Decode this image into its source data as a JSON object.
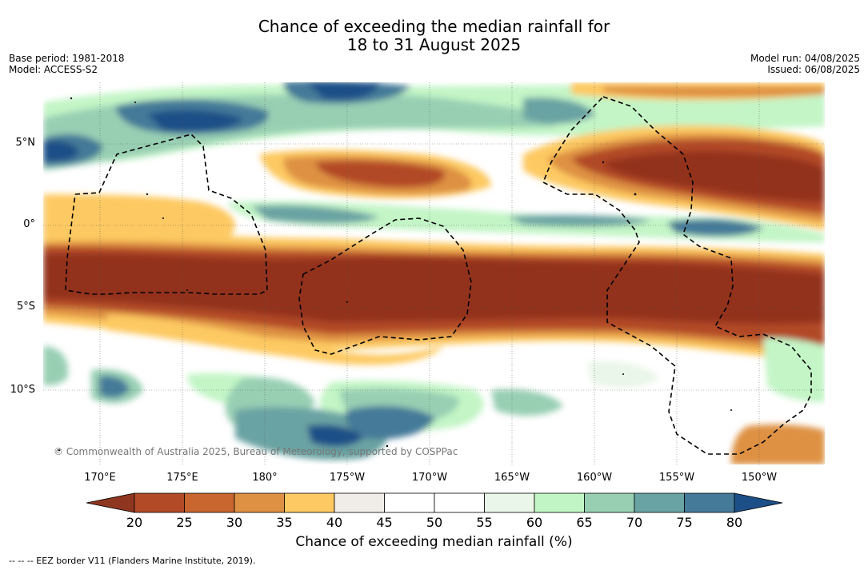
{
  "title_line1": "Chance of exceeding the median rainfall for",
  "title_line2": "18 to 31 August 2025",
  "base_period": "Base period: 1981-2018",
  "model": "Model: ACCESS-S2",
  "model_run": "Model run: 04/08/2025",
  "issued": "Issued: 06/08/2025",
  "lat_labels": [
    "5°N",
    "0°",
    "5°S",
    "10°S"
  ],
  "lon_labels": [
    "170°E",
    "175°E",
    "180°",
    "175°W",
    "170°W",
    "165°W",
    "160°W",
    "155°W",
    "150°W"
  ],
  "credit": "© Commonwealth of Australia 2025, Bureau of Meteorology, supported by COSPPac",
  "colorbar": {
    "ticks": [
      "20",
      "25",
      "30",
      "35",
      "40",
      "45",
      "50",
      "55",
      "60",
      "65",
      "70",
      "75",
      "80"
    ],
    "colors": [
      "#8f3620",
      "#b24a28",
      "#c9662f",
      "#de9143",
      "#fdc962",
      "#f0ede8",
      "#ffffff",
      "#ffffff",
      "#eaf6e9",
      "#c2f5c6",
      "#98cfb3",
      "#6aa3a3",
      "#457a99",
      "#1c4f87"
    ],
    "label": "Chance of exceeding median rainfall (%)"
  },
  "footnote": "-- -- -- EEZ border V11 (Flanders Marine Institute, 2019).",
  "palette": {
    "dark_brown": "#93331d",
    "brown": "#b8512d",
    "orange": "#d9843e",
    "yellow": "#fdc962",
    "beige": "#efebe6",
    "white": "#ffffff",
    "pale_green": "#e9f7e8",
    "light_green": "#c3f5c6",
    "teal_green": "#98cfb3",
    "teal": "#6aa3a3",
    "steel_blue": "#457a99",
    "dark_blue": "#1c4f87"
  }
}
